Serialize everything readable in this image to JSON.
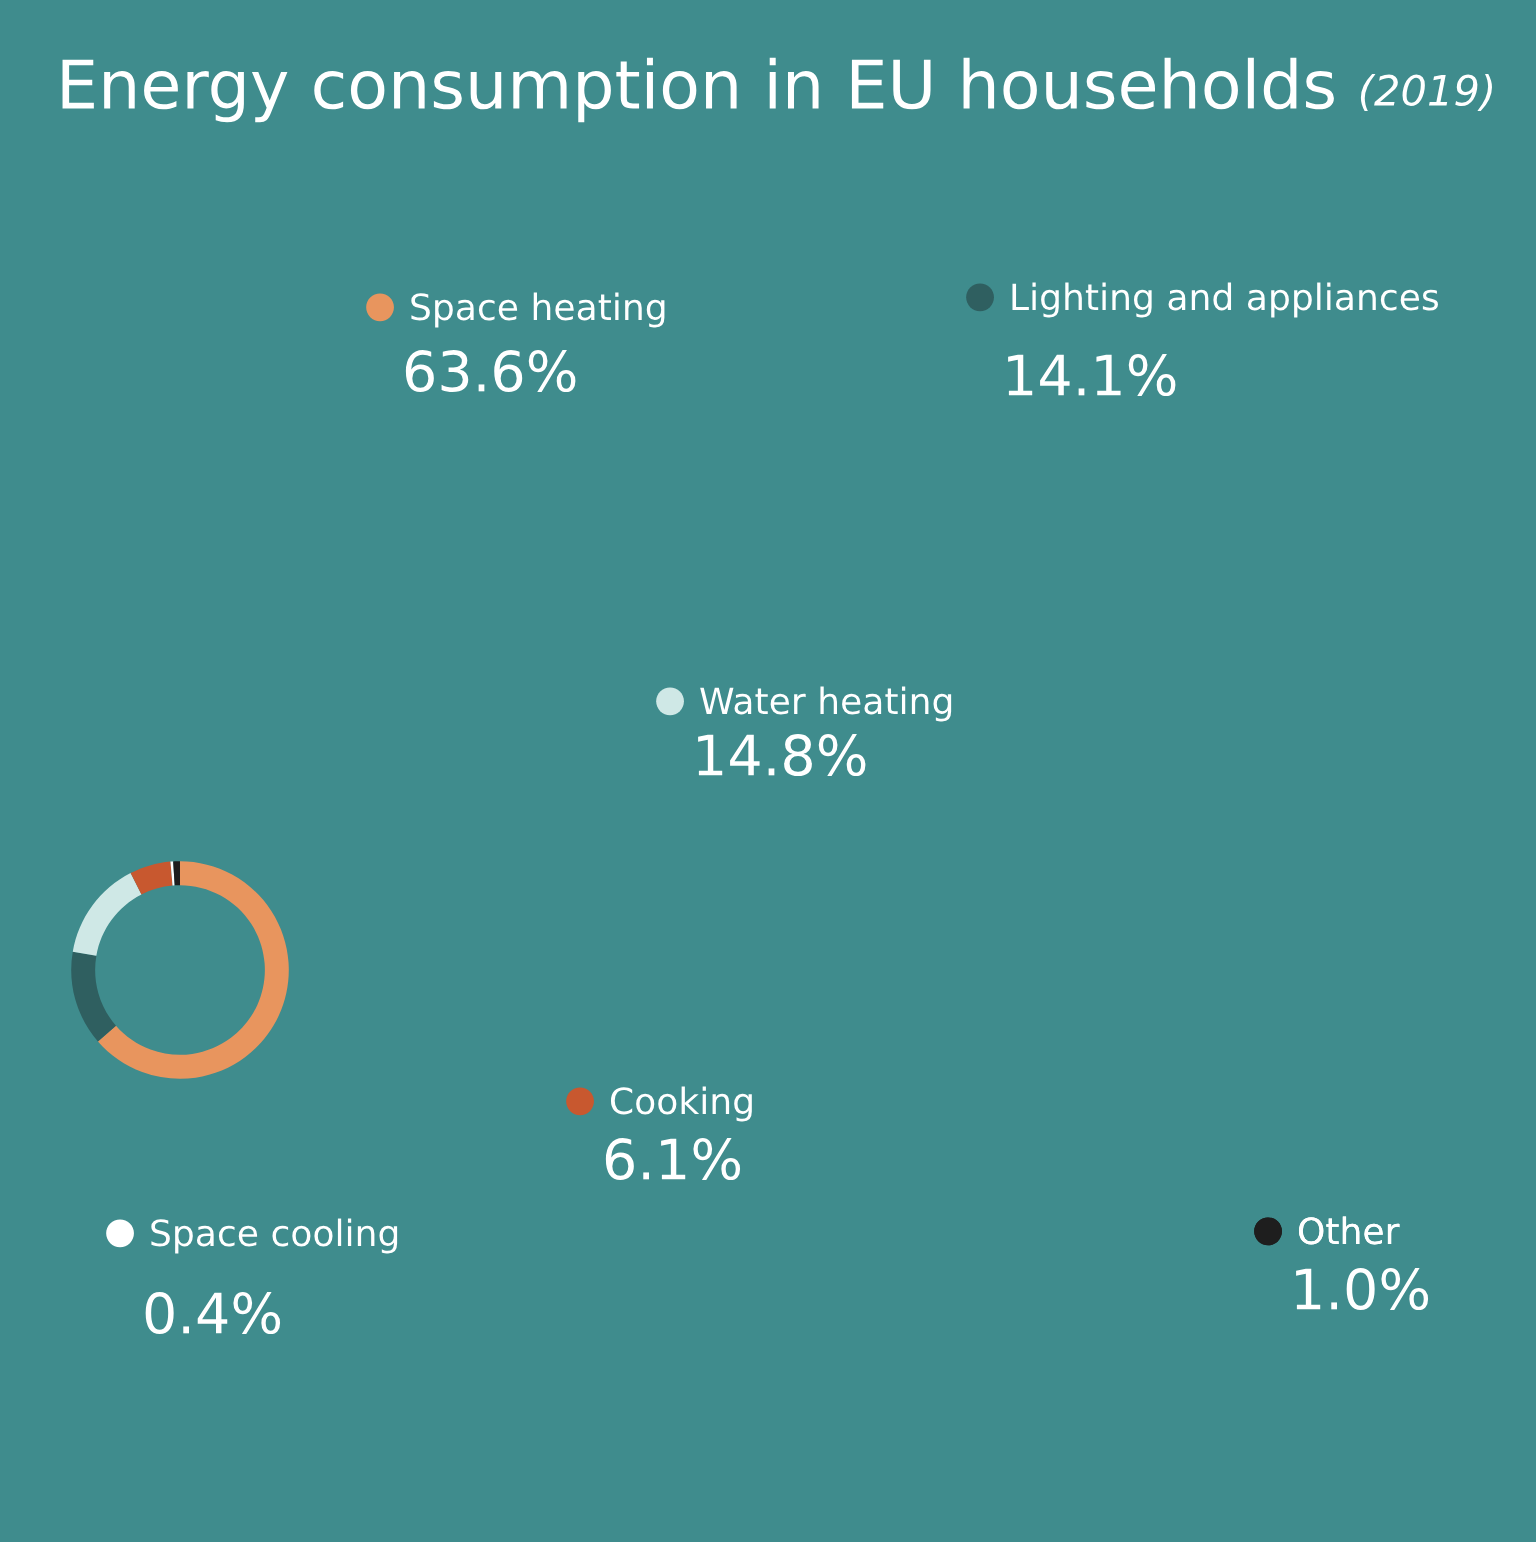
{
  "chart_data": {
    "type": "donut",
    "title": "Energy consumption in EU households",
    "subtitle": "(2019)",
    "categories": [
      "Space heating",
      "Lighting and appliances",
      "Water heating",
      "Cooking",
      "Space cooling",
      "Other"
    ],
    "values": [
      63.6,
      14.1,
      14.8,
      6.1,
      0.4,
      1.0
    ],
    "colors": [
      "#e8955e",
      "#2f5f60",
      "#cfe8e6",
      "#c8582f",
      "#ffffff",
      "#1e1e1e"
    ],
    "legend": "right",
    "value_labels": [
      "63.6%",
      "14.1%",
      "14.8%",
      "6.1%",
      "0.4%",
      "1.0%"
    ]
  }
}
